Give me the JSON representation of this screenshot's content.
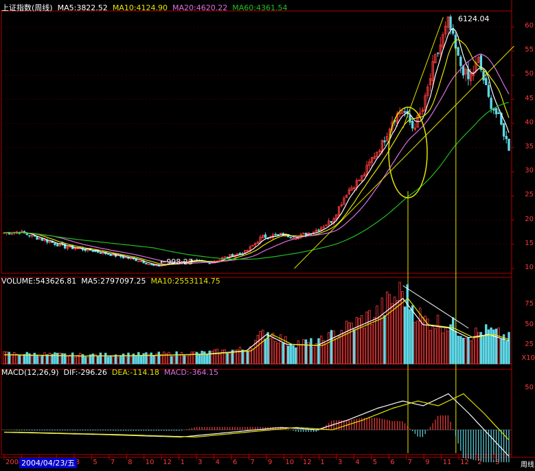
{
  "price_panel": {
    "title": "上证指数(周线)",
    "ma5": "MA5:3822.52",
    "ma10": "MA10:4124.90",
    "ma20": "MA20:4620.22",
    "ma60": "MA60:4361.54",
    "high_label": "6124.04",
    "low_label": "998.23",
    "y_ticks": [
      "60",
      "55",
      "50",
      "45",
      "40",
      "35",
      "30",
      "25",
      "20",
      "15",
      "10"
    ]
  },
  "volume_panel": {
    "volume": "VOLUME:543626.81",
    "ma5": "MA5:2797097.25",
    "ma10": "MA10:2553114.75",
    "y_ticks": [
      "75",
      "50",
      "25"
    ],
    "unit": "X10"
  },
  "macd_panel": {
    "title": "MACD(12,26,9)",
    "dif": "DIF:-296.26",
    "dea": "DEA:-114.18",
    "macd": "MACD:-364.15",
    "y_ticks": [
      "50"
    ]
  },
  "x_axis": {
    "labels": [
      "2004",
      "10",
      "12",
      "1",
      "3",
      "5",
      "7",
      "8",
      "10",
      "12",
      "1",
      "3",
      "4",
      "6",
      "7",
      "9",
      "10",
      "12",
      "1",
      "3",
      "4",
      "5",
      "6",
      "7",
      "9",
      "11",
      "12",
      "2",
      "3"
    ],
    "cursor_date": "2004/04/23/五",
    "period": "周线"
  },
  "colors": {
    "up": "#ff3c3c",
    "down": "#5ed8e6",
    "ma5": "#ffffff",
    "ma10": "#e6e600",
    "ma20": "#e070e0",
    "ma60": "#20c020",
    "annotation": "#e6e600",
    "axis": "#b00000"
  },
  "chart_data": [
    {
      "type": "candlestick",
      "title": "上证指数(周线)",
      "x_range": [
        "2004-04",
        "2008-03"
      ],
      "ylim": [
        900,
        6300
      ],
      "high": {
        "value": 6124.04,
        "date": "2007-10"
      },
      "low": {
        "value": 998.23,
        "date": "2005-06"
      },
      "close_series": [
        {
          "t": 0,
          "v": 1740
        },
        {
          "t": 0.03,
          "v": 1760
        },
        {
          "t": 0.07,
          "v": 1620
        },
        {
          "t": 0.12,
          "v": 1450
        },
        {
          "t": 0.17,
          "v": 1380
        },
        {
          "t": 0.22,
          "v": 1270
        },
        {
          "t": 0.27,
          "v": 1160
        },
        {
          "t": 0.3,
          "v": 1040
        },
        {
          "t": 0.33,
          "v": 1120
        },
        {
          "t": 0.37,
          "v": 1150
        },
        {
          "t": 0.41,
          "v": 1120
        },
        {
          "t": 0.44,
          "v": 1240
        },
        {
          "t": 0.48,
          "v": 1350
        },
        {
          "t": 0.51,
          "v": 1650
        },
        {
          "t": 0.55,
          "v": 1700
        },
        {
          "t": 0.58,
          "v": 1650
        },
        {
          "t": 0.62,
          "v": 1800
        },
        {
          "t": 0.65,
          "v": 2000
        },
        {
          "t": 0.68,
          "v": 2600
        },
        {
          "t": 0.71,
          "v": 2900
        },
        {
          "t": 0.73,
          "v": 3300
        },
        {
          "t": 0.75,
          "v": 3600
        },
        {
          "t": 0.77,
          "v": 4100
        },
        {
          "t": 0.79,
          "v": 4300
        },
        {
          "t": 0.81,
          "v": 3900
        },
        {
          "t": 0.83,
          "v": 4300
        },
        {
          "t": 0.85,
          "v": 5200
        },
        {
          "t": 0.87,
          "v": 5800
        },
        {
          "t": 0.88,
          "v": 6100
        },
        {
          "t": 0.9,
          "v": 5300
        },
        {
          "t": 0.92,
          "v": 4900
        },
        {
          "t": 0.94,
          "v": 5300
        },
        {
          "t": 0.96,
          "v": 4500
        },
        {
          "t": 0.98,
          "v": 4100
        },
        {
          "t": 1.0,
          "v": 3500
        }
      ],
      "series": [
        {
          "name": "MA5",
          "value": 3822.52
        },
        {
          "name": "MA10",
          "value": 4124.9
        },
        {
          "name": "MA20",
          "value": 4620.22
        },
        {
          "name": "MA60",
          "value": 4361.54
        }
      ]
    },
    {
      "type": "bar",
      "title": "VOLUME",
      "series": [
        {
          "name": "VOLUME",
          "value": 543626.81
        },
        {
          "name": "MA5",
          "value": 2797097.25
        },
        {
          "name": "MA10",
          "value": 2553114.75
        }
      ],
      "profile": [
        {
          "t": 0,
          "v": 0.14
        },
        {
          "t": 0.15,
          "v": 0.12
        },
        {
          "t": 0.3,
          "v": 0.13
        },
        {
          "t": 0.4,
          "v": 0.15
        },
        {
          "t": 0.48,
          "v": 0.2
        },
        {
          "t": 0.52,
          "v": 0.45
        },
        {
          "t": 0.56,
          "v": 0.3
        },
        {
          "t": 0.62,
          "v": 0.28
        },
        {
          "t": 0.68,
          "v": 0.5
        },
        {
          "t": 0.74,
          "v": 0.7
        },
        {
          "t": 0.79,
          "v": 1.0
        },
        {
          "t": 0.83,
          "v": 0.6
        },
        {
          "t": 0.88,
          "v": 0.55
        },
        {
          "t": 0.92,
          "v": 0.4
        },
        {
          "t": 0.96,
          "v": 0.45
        },
        {
          "t": 1.0,
          "v": 0.35
        }
      ]
    },
    {
      "type": "line",
      "title": "MACD(12,26,9)",
      "series": [
        {
          "name": "DIF",
          "value": -296.26
        },
        {
          "name": "DEA",
          "value": -114.18
        },
        {
          "name": "MACD",
          "value": -364.15
        }
      ],
      "profile": [
        {
          "t": 0,
          "v": -0.05
        },
        {
          "t": 0.2,
          "v": -0.1
        },
        {
          "t": 0.35,
          "v": -0.15
        },
        {
          "t": 0.45,
          "v": -0.05
        },
        {
          "t": 0.55,
          "v": 0.05
        },
        {
          "t": 0.62,
          "v": 0.0
        },
        {
          "t": 0.68,
          "v": 0.2
        },
        {
          "t": 0.74,
          "v": 0.45
        },
        {
          "t": 0.79,
          "v": 0.6
        },
        {
          "t": 0.83,
          "v": 0.5
        },
        {
          "t": 0.88,
          "v": 0.75
        },
        {
          "t": 0.92,
          "v": 0.35
        },
        {
          "t": 0.96,
          "v": -0.1
        },
        {
          "t": 1.0,
          "v": -0.55
        }
      ]
    }
  ]
}
